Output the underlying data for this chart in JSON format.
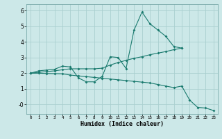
{
  "xlabel": "Humidex (Indice chaleur)",
  "background_color": "#cce8e8",
  "grid_color": "#aacfcf",
  "line_color": "#1a7a6e",
  "xlim": [
    -0.5,
    23.5
  ],
  "ylim": [
    -0.6,
    6.4
  ],
  "xticks": [
    0,
    1,
    2,
    3,
    4,
    5,
    6,
    7,
    8,
    9,
    10,
    11,
    12,
    13,
    14,
    15,
    16,
    17,
    18,
    19,
    20,
    21,
    22,
    23
  ],
  "yticks": [
    0,
    1,
    2,
    3,
    4,
    5,
    6
  ],
  "ytick_labels": [
    "-0",
    "1",
    "2",
    "3",
    "4",
    "5",
    "6"
  ],
  "line1_y": [
    2.0,
    2.15,
    2.2,
    2.25,
    2.45,
    2.4,
    1.7,
    1.45,
    1.45,
    1.8,
    3.05,
    3.0,
    2.3,
    4.75,
    5.9,
    5.15,
    4.75,
    4.35,
    3.7,
    3.6,
    null,
    null,
    null,
    null
  ],
  "line2_y": [
    2.0,
    2.05,
    2.1,
    2.15,
    2.22,
    2.28,
    2.28,
    2.28,
    2.28,
    2.32,
    2.52,
    2.68,
    2.82,
    2.95,
    3.05,
    3.18,
    3.28,
    3.38,
    3.5,
    3.6,
    null,
    null,
    null,
    null
  ],
  "line3_y": [
    2.0,
    2.0,
    1.98,
    1.97,
    1.96,
    1.88,
    1.83,
    1.78,
    1.73,
    1.68,
    1.63,
    1.58,
    1.53,
    1.48,
    1.43,
    1.38,
    1.28,
    1.18,
    1.08,
    1.18,
    0.28,
    -0.18,
    -0.22,
    -0.38
  ]
}
